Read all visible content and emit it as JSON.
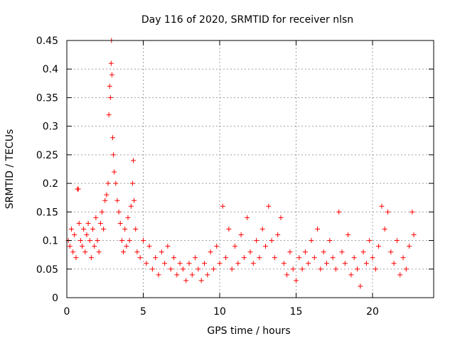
{
  "chart_data": {
    "type": "scatter",
    "title": "Day 116 of 2020, SRMTID for receiver nlsn",
    "xlabel": "GPS time / hours",
    "ylabel": "SRMTID / TECUs",
    "xlim": [
      0,
      24
    ],
    "ylim": [
      0,
      0.45
    ],
    "xticks": [
      0,
      5,
      10,
      15,
      20
    ],
    "xtick_labels": [
      "0",
      "5",
      "10",
      "15",
      "20"
    ],
    "yticks": [
      0,
      0.05,
      0.1,
      0.15,
      0.2,
      0.25,
      0.3,
      0.35,
      0.4,
      0.45
    ],
    "ytick_labels": [
      "0",
      "0.05",
      "0.1",
      "0.15",
      "0.2",
      "0.25",
      "0.3",
      "0.35",
      "0.4",
      "0.45"
    ],
    "grid": true,
    "marker": "+",
    "marker_color": "#ff0000",
    "series": [
      {
        "name": "SRMTID",
        "points": [
          [
            0.1,
            0.1
          ],
          [
            0.2,
            0.09
          ],
          [
            0.3,
            0.12
          ],
          [
            0.4,
            0.08
          ],
          [
            0.5,
            0.11
          ],
          [
            0.6,
            0.07
          ],
          [
            0.7,
            0.19
          ],
          [
            0.75,
            0.19
          ],
          [
            0.8,
            0.13
          ],
          [
            0.9,
            0.1
          ],
          [
            1.0,
            0.09
          ],
          [
            1.1,
            0.12
          ],
          [
            1.2,
            0.08
          ],
          [
            1.3,
            0.11
          ],
          [
            1.4,
            0.13
          ],
          [
            1.5,
            0.1
          ],
          [
            1.6,
            0.07
          ],
          [
            1.7,
            0.12
          ],
          [
            1.8,
            0.09
          ],
          [
            1.9,
            0.14
          ],
          [
            2.0,
            0.1
          ],
          [
            2.1,
            0.08
          ],
          [
            2.2,
            0.13
          ],
          [
            2.3,
            0.15
          ],
          [
            2.4,
            0.12
          ],
          [
            2.5,
            0.17
          ],
          [
            2.6,
            0.18
          ],
          [
            2.7,
            0.2
          ],
          [
            2.75,
            0.32
          ],
          [
            2.8,
            0.37
          ],
          [
            2.85,
            0.35
          ],
          [
            2.9,
            0.41
          ],
          [
            2.92,
            0.45
          ],
          [
            2.95,
            0.39
          ],
          [
            3.0,
            0.28
          ],
          [
            3.05,
            0.25
          ],
          [
            3.1,
            0.22
          ],
          [
            3.2,
            0.2
          ],
          [
            3.3,
            0.17
          ],
          [
            3.4,
            0.15
          ],
          [
            3.5,
            0.13
          ],
          [
            3.6,
            0.1
          ],
          [
            3.7,
            0.08
          ],
          [
            3.8,
            0.12
          ],
          [
            3.9,
            0.09
          ],
          [
            4.0,
            0.14
          ],
          [
            4.1,
            0.1
          ],
          [
            4.2,
            0.16
          ],
          [
            4.3,
            0.2
          ],
          [
            4.35,
            0.24
          ],
          [
            4.4,
            0.17
          ],
          [
            4.5,
            0.12
          ],
          [
            4.6,
            0.08
          ],
          [
            4.8,
            0.07
          ],
          [
            5.0,
            0.1
          ],
          [
            5.2,
            0.06
          ],
          [
            5.4,
            0.09
          ],
          [
            5.6,
            0.05
          ],
          [
            5.8,
            0.07
          ],
          [
            6.0,
            0.04
          ],
          [
            6.2,
            0.08
          ],
          [
            6.4,
            0.06
          ],
          [
            6.6,
            0.09
          ],
          [
            6.8,
            0.05
          ],
          [
            7.0,
            0.07
          ],
          [
            7.2,
            0.04
          ],
          [
            7.4,
            0.06
          ],
          [
            7.6,
            0.05
          ],
          [
            7.8,
            0.03
          ],
          [
            8.0,
            0.06
          ],
          [
            8.2,
            0.04
          ],
          [
            8.4,
            0.07
          ],
          [
            8.6,
            0.05
          ],
          [
            8.8,
            0.03
          ],
          [
            9.0,
            0.06
          ],
          [
            9.2,
            0.04
          ],
          [
            9.4,
            0.08
          ],
          [
            9.6,
            0.05
          ],
          [
            9.8,
            0.09
          ],
          [
            10.0,
            0.06
          ],
          [
            10.2,
            0.16
          ],
          [
            10.4,
            0.07
          ],
          [
            10.6,
            0.12
          ],
          [
            10.8,
            0.05
          ],
          [
            11.0,
            0.09
          ],
          [
            11.2,
            0.06
          ],
          [
            11.4,
            0.11
          ],
          [
            11.6,
            0.07
          ],
          [
            11.8,
            0.14
          ],
          [
            12.0,
            0.08
          ],
          [
            12.2,
            0.06
          ],
          [
            12.4,
            0.1
          ],
          [
            12.6,
            0.07
          ],
          [
            12.8,
            0.12
          ],
          [
            13.0,
            0.09
          ],
          [
            13.2,
            0.16
          ],
          [
            13.4,
            0.1
          ],
          [
            13.6,
            0.07
          ],
          [
            13.8,
            0.11
          ],
          [
            14.0,
            0.14
          ],
          [
            14.2,
            0.06
          ],
          [
            14.4,
            0.04
          ],
          [
            14.6,
            0.08
          ],
          [
            14.8,
            0.05
          ],
          [
            15.0,
            0.03
          ],
          [
            15.2,
            0.07
          ],
          [
            15.4,
            0.05
          ],
          [
            15.6,
            0.08
          ],
          [
            15.8,
            0.06
          ],
          [
            16.0,
            0.1
          ],
          [
            16.2,
            0.07
          ],
          [
            16.4,
            0.12
          ],
          [
            16.6,
            0.05
          ],
          [
            16.8,
            0.08
          ],
          [
            17.0,
            0.06
          ],
          [
            17.2,
            0.1
          ],
          [
            17.4,
            0.07
          ],
          [
            17.6,
            0.05
          ],
          [
            17.8,
            0.15
          ],
          [
            18.0,
            0.08
          ],
          [
            18.2,
            0.06
          ],
          [
            18.4,
            0.11
          ],
          [
            18.6,
            0.04
          ],
          [
            18.8,
            0.07
          ],
          [
            19.0,
            0.05
          ],
          [
            19.2,
            0.02
          ],
          [
            19.4,
            0.08
          ],
          [
            19.6,
            0.06
          ],
          [
            19.8,
            0.1
          ],
          [
            20.0,
            0.07
          ],
          [
            20.2,
            0.05
          ],
          [
            20.4,
            0.09
          ],
          [
            20.6,
            0.16
          ],
          [
            20.8,
            0.12
          ],
          [
            21.0,
            0.15
          ],
          [
            21.2,
            0.08
          ],
          [
            21.4,
            0.06
          ],
          [
            21.6,
            0.1
          ],
          [
            21.8,
            0.04
          ],
          [
            22.0,
            0.07
          ],
          [
            22.2,
            0.05
          ],
          [
            22.4,
            0.09
          ],
          [
            22.6,
            0.15
          ],
          [
            22.7,
            0.11
          ]
        ]
      }
    ]
  }
}
